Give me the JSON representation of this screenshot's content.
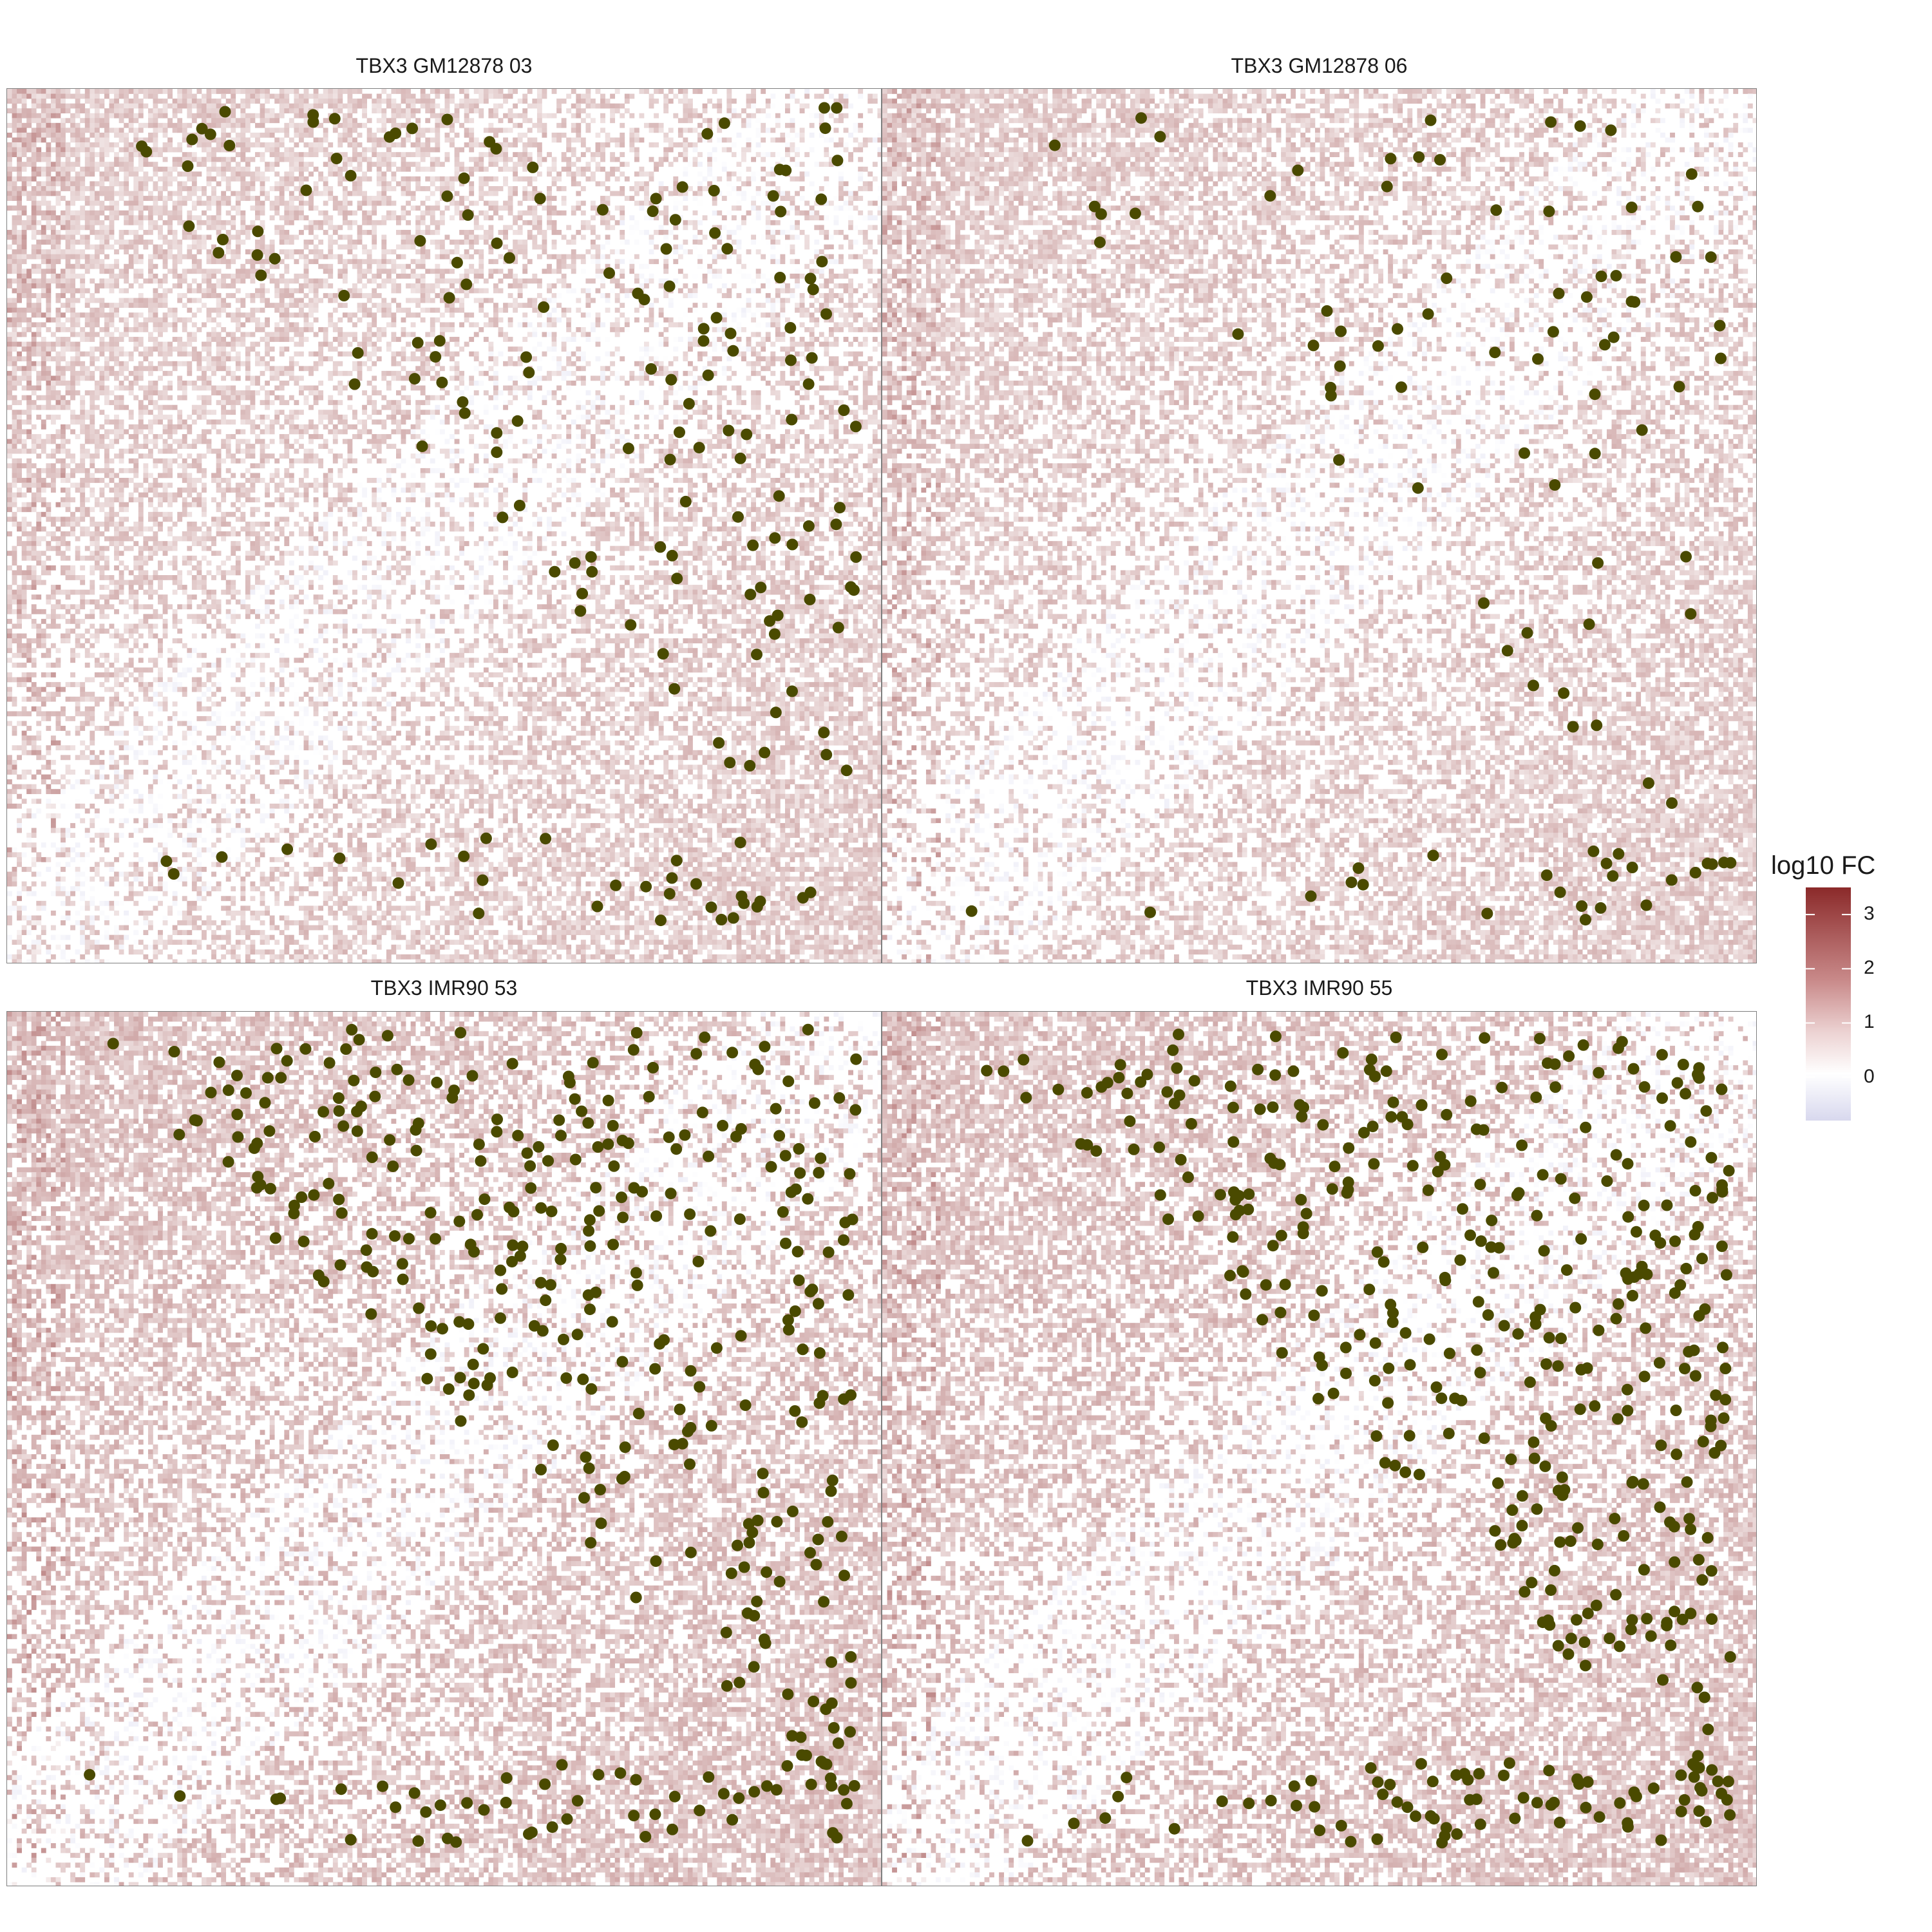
{
  "chart_data": {
    "type": "heatmap",
    "facets": [
      {
        "title": "TBX3 GM12878 03",
        "n_points": 180,
        "seed": 11
      },
      {
        "title": "TBX3 GM12878 06",
        "n_points": 95,
        "seed": 23
      },
      {
        "title": "TBX3 IMR90 53",
        "n_points": 360,
        "seed": 37
      },
      {
        "title": "TBX3 IMR90 55",
        "n_points": 420,
        "seed": 51
      }
    ],
    "legend": {
      "title": "log10 FC",
      "ticks": [
        "3",
        "2",
        "1",
        "0"
      ],
      "tick_values": [
        3,
        2,
        1,
        0
      ],
      "range": [
        -0.8,
        3.5
      ],
      "colors": {
        "low": "#d8d8ee",
        "mid": "#ffffff",
        "high": "#8b2a2a"
      }
    },
    "point_color": "#4a4a00",
    "axes": "none",
    "grid": false,
    "legend_position": "right"
  }
}
